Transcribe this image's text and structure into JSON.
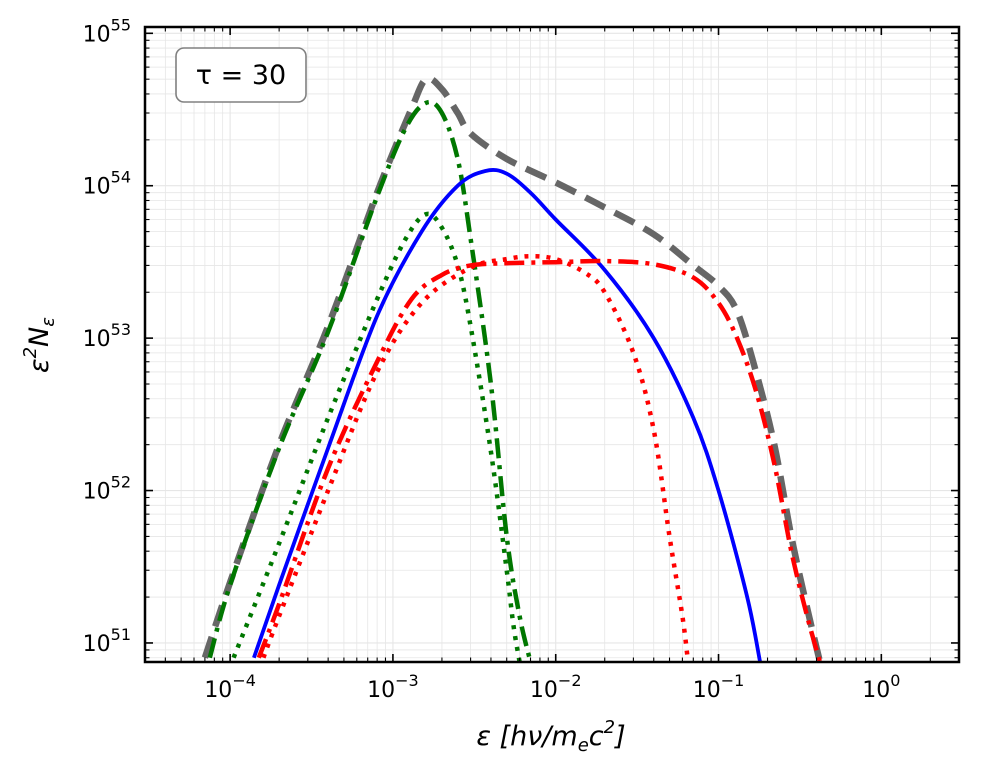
{
  "chart_data": {
    "type": "line",
    "xscale": "log",
    "yscale": "log",
    "xlim": [
      3e-05,
      3
    ],
    "ylim": [
      7.5e+50,
      1.1e+55
    ],
    "annotation": "τ = 30",
    "annotation_position": "top-left",
    "xlabel": "ε [hν/m_e c²]",
    "ylabel": "ε² N_ε",
    "grid": true,
    "x_ticks": [
      {
        "value": 0.0001,
        "base": "10",
        "exp": "−4"
      },
      {
        "value": 0.001,
        "base": "10",
        "exp": "−3"
      },
      {
        "value": 0.01,
        "base": "10",
        "exp": "−2"
      },
      {
        "value": 0.1,
        "base": "10",
        "exp": "−1"
      },
      {
        "value": 1,
        "base": "10",
        "exp": "0"
      }
    ],
    "y_ticks": [
      {
        "value": 1e+51,
        "base": "10",
        "exp": "51"
      },
      {
        "value": 1e+52,
        "base": "10",
        "exp": "52"
      },
      {
        "value": 1e+53,
        "base": "10",
        "exp": "53"
      },
      {
        "value": 1e+54,
        "base": "10",
        "exp": "54"
      },
      {
        "value": 1e+55,
        "base": "10",
        "exp": "55"
      }
    ],
    "series": [
      {
        "name": "total (gray dashed)",
        "color": "#666666",
        "style": "dashed",
        "points": [
          [
            7e-05,
            8e+50
          ],
          [
            0.0001,
            2.5e+51
          ],
          [
            0.0002,
            2e+52
          ],
          [
            0.0004,
            1.2e+53
          ],
          [
            0.0008,
            9e+53
          ],
          [
            0.0013,
            3.2e+54
          ],
          [
            0.0016,
            5e+54
          ],
          [
            0.002,
            4.3e+54
          ],
          [
            0.0025,
            3e+54
          ],
          [
            0.003,
            2.2e+54
          ],
          [
            0.005,
            1.5e+54
          ],
          [
            0.01,
            1.05e+54
          ],
          [
            0.02,
            7.2e+53
          ],
          [
            0.04,
            4.8e+53
          ],
          [
            0.07,
            3e+53
          ],
          [
            0.1,
            2.2e+53
          ],
          [
            0.13,
            1.5e+53
          ],
          [
            0.17,
            6e+52
          ],
          [
            0.22,
            2e+52
          ],
          [
            0.28,
            5e+51
          ],
          [
            0.35,
            1.7e+51
          ],
          [
            0.42,
            7.5e+50
          ]
        ]
      },
      {
        "name": "green dash-dot",
        "color": "#007700",
        "style": "dashdot",
        "points": [
          [
            7.5e-05,
            8e+50
          ],
          [
            0.0001,
            2.4e+51
          ],
          [
            0.0002,
            1.9e+52
          ],
          [
            0.0004,
            1.1e+53
          ],
          [
            0.0008,
            8.5e+53
          ],
          [
            0.0012,
            2.4e+54
          ],
          [
            0.0016,
            3.5e+54
          ],
          [
            0.002,
            3e+54
          ],
          [
            0.0025,
            1.5e+54
          ],
          [
            0.003,
            4.5e+53
          ],
          [
            0.004,
            5e+52
          ],
          [
            0.005,
            5e+51
          ],
          [
            0.006,
            1.5e+51
          ],
          [
            0.007,
            7.5e+50
          ]
        ]
      },
      {
        "name": "green dotted",
        "color": "#007700",
        "style": "dotted",
        "points": [
          [
            0.000105,
            8e+50
          ],
          [
            0.0002,
            4.5e+51
          ],
          [
            0.0004,
            3e+52
          ],
          [
            0.0008,
            1.8e+53
          ],
          [
            0.0012,
            4.5e+53
          ],
          [
            0.0016,
            6.5e+53
          ],
          [
            0.002,
            5.3e+53
          ],
          [
            0.0025,
            3e+53
          ],
          [
            0.003,
            1.2e+53
          ],
          [
            0.004,
            1.8e+52
          ],
          [
            0.005,
            3e+51
          ],
          [
            0.0055,
            1.3e+51
          ],
          [
            0.006,
            7.5e+50
          ]
        ]
      },
      {
        "name": "blue solid",
        "color": "#0000ff",
        "style": "solid",
        "points": [
          [
            0.00014,
            8e+50
          ],
          [
            0.0002,
            2.4e+51
          ],
          [
            0.0004,
            1.9e+52
          ],
          [
            0.0008,
            1.4e+53
          ],
          [
            0.0015,
            5e+53
          ],
          [
            0.0025,
            1e+54
          ],
          [
            0.0037,
            1.25e+54
          ],
          [
            0.005,
            1.2e+54
          ],
          [
            0.007,
            9e+53
          ],
          [
            0.01,
            6e+53
          ],
          [
            0.02,
            2.8e+53
          ],
          [
            0.04,
            1e+53
          ],
          [
            0.07,
            3e+52
          ],
          [
            0.1,
            1e+52
          ],
          [
            0.15,
            2e+51
          ],
          [
            0.18,
            7.5e+50
          ]
        ]
      },
      {
        "name": "red dash-dot",
        "color": "#ff0000",
        "style": "dashdot",
        "points": [
          [
            0.00015,
            8e+50
          ],
          [
            0.0002,
            1.8e+51
          ],
          [
            0.0004,
            1.4e+52
          ],
          [
            0.0008,
            7e+52
          ],
          [
            0.0013,
            1.8e+53
          ],
          [
            0.002,
            2.6e+53
          ],
          [
            0.003,
            3e+53
          ],
          [
            0.005,
            3.1e+53
          ],
          [
            0.01,
            3.15e+53
          ],
          [
            0.02,
            3.2e+53
          ],
          [
            0.04,
            3.05e+53
          ],
          [
            0.07,
            2.5e+53
          ],
          [
            0.1,
            1.7e+53
          ],
          [
            0.13,
            1e+53
          ],
          [
            0.17,
            4.5e+52
          ],
          [
            0.22,
            1.5e+52
          ],
          [
            0.28,
            4e+51
          ],
          [
            0.35,
            1.5e+51
          ],
          [
            0.42,
            7.5e+50
          ]
        ]
      },
      {
        "name": "red dotted",
        "color": "#ff0000",
        "style": "dotted",
        "points": [
          [
            0.00016,
            8e+50
          ],
          [
            0.0002,
            1.5e+51
          ],
          [
            0.0004,
            1e+52
          ],
          [
            0.0008,
            6e+52
          ],
          [
            0.0015,
            1.7e+53
          ],
          [
            0.003,
            2.9e+53
          ],
          [
            0.005,
            3.3e+53
          ],
          [
            0.007,
            3.45e+53
          ],
          [
            0.01,
            3.3e+53
          ],
          [
            0.015,
            2.7e+53
          ],
          [
            0.02,
            2e+53
          ],
          [
            0.03,
            8e+52
          ],
          [
            0.04,
            2.5e+52
          ],
          [
            0.05,
            5e+51
          ],
          [
            0.06,
            1.5e+51
          ],
          [
            0.065,
            7.5e+50
          ]
        ]
      }
    ]
  }
}
